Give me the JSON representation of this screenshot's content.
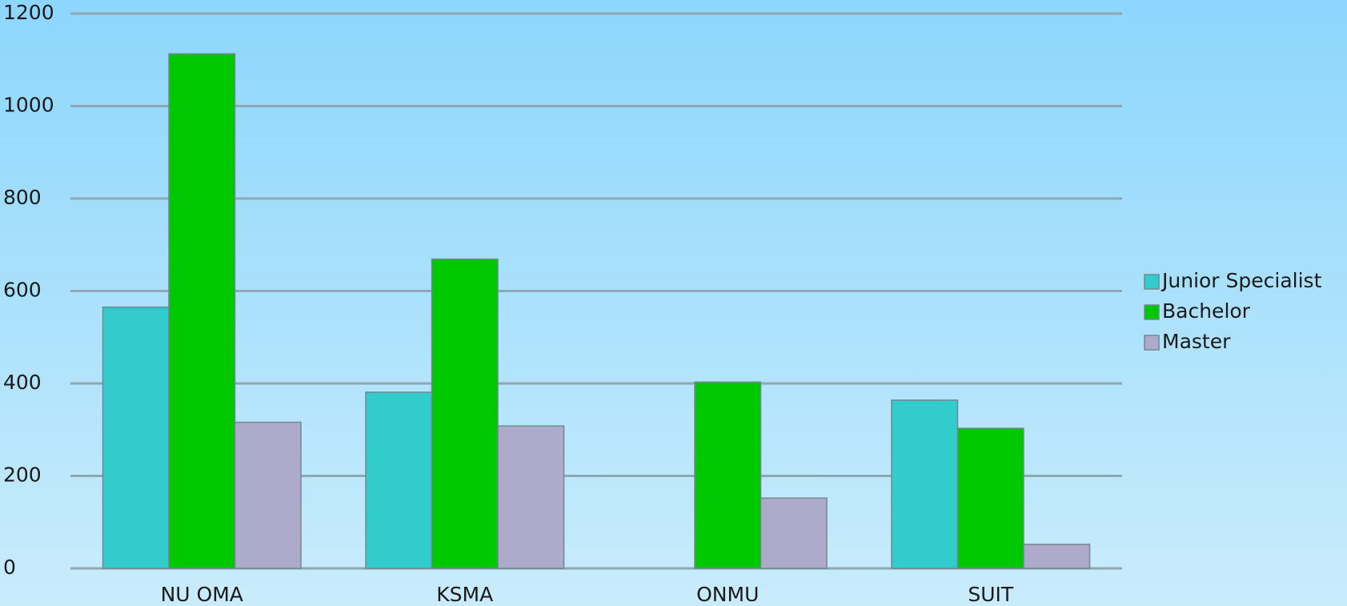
{
  "chart_data": {
    "type": "bar",
    "categories": [
      "NU OMA",
      "KSMA",
      "ONMU",
      "SUIT"
    ],
    "series": [
      {
        "name": "Junior Specialist",
        "color": "#33cccc",
        "values": [
          565,
          381,
          0,
          364
        ]
      },
      {
        "name": "Bachelor",
        "color": "#00c800",
        "values": [
          1113,
          669,
          403,
          303
        ]
      },
      {
        "name": "Master",
        "color": "#aeaacc",
        "values": [
          316,
          308,
          152,
          52
        ]
      }
    ],
    "ylim": [
      0,
      1200
    ],
    "yticks": [
      0,
      200,
      400,
      600,
      800,
      1000,
      1200
    ],
    "grid": true,
    "legend": "right"
  }
}
